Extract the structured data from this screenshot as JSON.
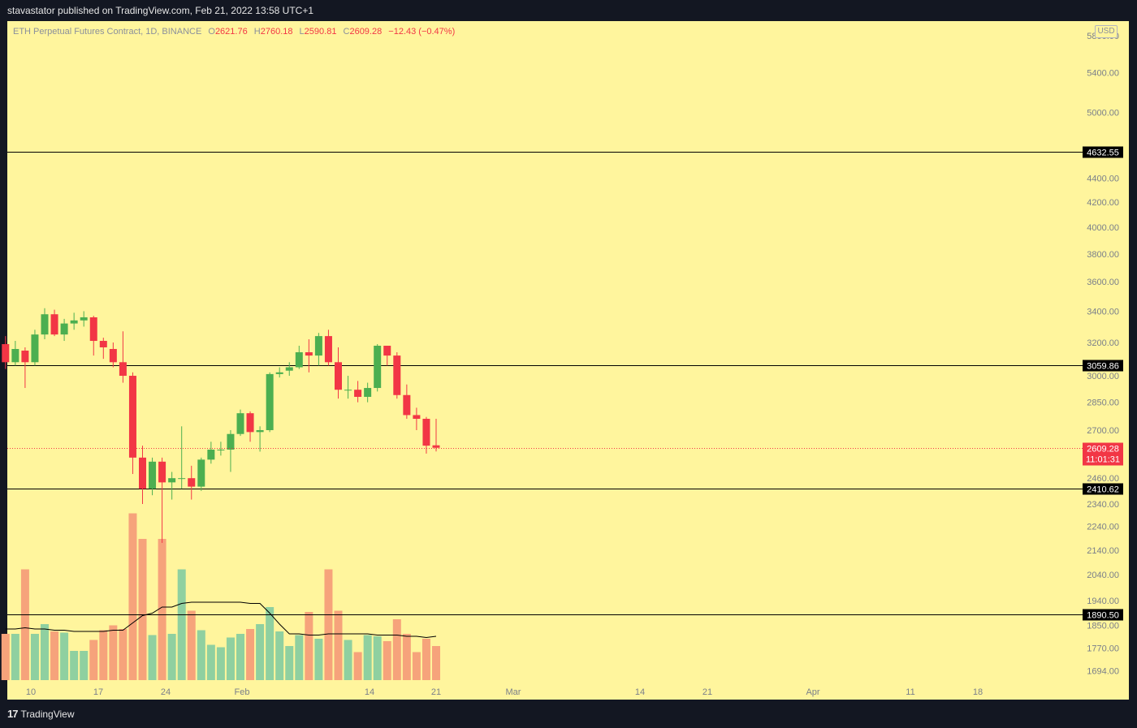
{
  "header": {
    "publisher_text": "stavastator published on TradingView.com, Feb 21, 2022 13:58 UTC+1"
  },
  "legend": {
    "symbol": "ETH Perpetual Futures Contract, 1D, BINANCE",
    "open_label": "O",
    "open": "2621.76",
    "high_label": "H",
    "high": "2760.18",
    "low_label": "L",
    "low": "2590.81",
    "close_label": "C",
    "close": "2609.28",
    "change": "−12.43 (−0.47%)"
  },
  "currency_badge": "USD",
  "footer": {
    "brand": "TradingView",
    "logo_glyph": "17"
  },
  "colors": {
    "background": "#fff59d",
    "up": "#4caf50",
    "down": "#f23645",
    "vol_up": "#8fd0a0",
    "vol_down": "#f6a37b",
    "level_line": "#000000",
    "last_price": "#f23645"
  },
  "chart_data": {
    "type": "candlestick",
    "title": "ETH Perpetual Futures Contract, 1D, BINANCE",
    "y_scale": "log",
    "price_axis_labels": [
      "5800.00",
      "5400.00",
      "5000.00",
      "4400.00",
      "4200.00",
      "4000.00",
      "3800.00",
      "3600.00",
      "3400.00",
      "3200.00",
      "3000.00",
      "2850.00",
      "2700.00",
      "2460.00",
      "2340.00",
      "2240.00",
      "2140.00",
      "2040.00",
      "1940.00",
      "1850.00",
      "1770.00",
      "1694.00"
    ],
    "price_axis_ticks": [
      5800,
      5400,
      5000,
      4400,
      4200,
      4000,
      3800,
      3600,
      3400,
      3200,
      3000,
      2850,
      2700,
      2460,
      2340,
      2240,
      2140,
      2040,
      1940,
      1850,
      1770,
      1694
    ],
    "time_axis_labels": [
      "10",
      "17",
      "24",
      "Feb",
      "14",
      "21",
      "Mar",
      "14",
      "21",
      "Apr",
      "11",
      "18"
    ],
    "horizontal_levels": [
      {
        "price": 4632.55,
        "label": "4632.55"
      },
      {
        "price": 3059.86,
        "label": "3059.86"
      },
      {
        "price": 2410.62,
        "label": "2410.62"
      },
      {
        "price": 1890.5,
        "label": "1890.50"
      }
    ],
    "last_price": {
      "price": 2609.28,
      "label": "2609.28",
      "countdown": "11:01:31"
    },
    "candles": [
      {
        "date": "2022-01-08",
        "o": 3190,
        "h": 3240,
        "l": 3040,
        "c": 3080
      },
      {
        "date": "2022-01-09",
        "o": 3080,
        "h": 3210,
        "l": 3060,
        "c": 3160
      },
      {
        "date": "2022-01-10",
        "o": 3150,
        "h": 3170,
        "l": 2930,
        "c": 3080
      },
      {
        "date": "2022-01-11",
        "o": 3080,
        "h": 3280,
        "l": 3060,
        "c": 3250
      },
      {
        "date": "2022-01-12",
        "o": 3250,
        "h": 3420,
        "l": 3220,
        "c": 3380
      },
      {
        "date": "2022-01-13",
        "o": 3380,
        "h": 3410,
        "l": 3240,
        "c": 3250
      },
      {
        "date": "2022-01-14",
        "o": 3250,
        "h": 3350,
        "l": 3210,
        "c": 3320
      },
      {
        "date": "2022-01-15",
        "o": 3320,
        "h": 3390,
        "l": 3280,
        "c": 3340
      },
      {
        "date": "2022-01-16",
        "o": 3340,
        "h": 3400,
        "l": 3300,
        "c": 3360
      },
      {
        "date": "2022-01-17",
        "o": 3360,
        "h": 3370,
        "l": 3120,
        "c": 3210
      },
      {
        "date": "2022-01-18",
        "o": 3210,
        "h": 3230,
        "l": 3100,
        "c": 3170
      },
      {
        "date": "2022-01-19",
        "o": 3160,
        "h": 3200,
        "l": 3050,
        "c": 3080
      },
      {
        "date": "2022-01-20",
        "o": 3080,
        "h": 3270,
        "l": 2960,
        "c": 3000
      },
      {
        "date": "2022-01-21",
        "o": 3000,
        "h": 3020,
        "l": 2480,
        "c": 2560
      },
      {
        "date": "2022-01-22",
        "o": 2560,
        "h": 2620,
        "l": 2340,
        "c": 2410
      },
      {
        "date": "2022-01-23",
        "o": 2410,
        "h": 2560,
        "l": 2380,
        "c": 2540
      },
      {
        "date": "2022-01-24",
        "o": 2540,
        "h": 2560,
        "l": 2170,
        "c": 2440
      },
      {
        "date": "2022-01-25",
        "o": 2440,
        "h": 2490,
        "l": 2360,
        "c": 2460
      },
      {
        "date": "2022-01-26",
        "o": 2460,
        "h": 2720,
        "l": 2410,
        "c": 2460
      },
      {
        "date": "2022-01-27",
        "o": 2460,
        "h": 2520,
        "l": 2360,
        "c": 2420
      },
      {
        "date": "2022-01-28",
        "o": 2420,
        "h": 2560,
        "l": 2400,
        "c": 2550
      },
      {
        "date": "2022-01-29",
        "o": 2550,
        "h": 2640,
        "l": 2530,
        "c": 2600
      },
      {
        "date": "2022-01-30",
        "o": 2600,
        "h": 2640,
        "l": 2570,
        "c": 2600
      },
      {
        "date": "2022-01-31",
        "o": 2600,
        "h": 2700,
        "l": 2490,
        "c": 2680
      },
      {
        "date": "2022-02-01",
        "o": 2680,
        "h": 2810,
        "l": 2670,
        "c": 2790
      },
      {
        "date": "2022-02-02",
        "o": 2790,
        "h": 2800,
        "l": 2640,
        "c": 2690
      },
      {
        "date": "2022-02-03",
        "o": 2690,
        "h": 2720,
        "l": 2590,
        "c": 2700
      },
      {
        "date": "2022-02-04",
        "o": 2700,
        "h": 3020,
        "l": 2690,
        "c": 3010
      },
      {
        "date": "2022-02-05",
        "o": 3010,
        "h": 3050,
        "l": 2990,
        "c": 3020
      },
      {
        "date": "2022-02-06",
        "o": 3030,
        "h": 3080,
        "l": 3000,
        "c": 3050
      },
      {
        "date": "2022-02-07",
        "o": 3050,
        "h": 3180,
        "l": 3040,
        "c": 3140
      },
      {
        "date": "2022-02-08",
        "o": 3140,
        "h": 3220,
        "l": 3020,
        "c": 3120
      },
      {
        "date": "2022-02-09",
        "o": 3120,
        "h": 3260,
        "l": 3060,
        "c": 3240
      },
      {
        "date": "2022-02-10",
        "o": 3240,
        "h": 3280,
        "l": 3060,
        "c": 3080
      },
      {
        "date": "2022-02-11",
        "o": 3080,
        "h": 3170,
        "l": 2870,
        "c": 2920
      },
      {
        "date": "2022-02-12",
        "o": 2920,
        "h": 3000,
        "l": 2870,
        "c": 2920
      },
      {
        "date": "2022-02-13",
        "o": 2920,
        "h": 2970,
        "l": 2850,
        "c": 2880
      },
      {
        "date": "2022-02-14",
        "o": 2880,
        "h": 2960,
        "l": 2850,
        "c": 2930
      },
      {
        "date": "2022-02-15",
        "o": 2930,
        "h": 3190,
        "l": 2910,
        "c": 3180
      },
      {
        "date": "2022-02-16",
        "o": 3180,
        "h": 3180,
        "l": 3060,
        "c": 3120
      },
      {
        "date": "2022-02-17",
        "o": 3120,
        "h": 3140,
        "l": 2870,
        "c": 2890
      },
      {
        "date": "2022-02-18",
        "o": 2890,
        "h": 2950,
        "l": 2760,
        "c": 2780
      },
      {
        "date": "2022-02-19",
        "o": 2780,
        "h": 2820,
        "l": 2700,
        "c": 2760
      },
      {
        "date": "2022-02-20",
        "o": 2760,
        "h": 2770,
        "l": 2580,
        "c": 2620
      },
      {
        "date": "2022-02-21",
        "o": 2621.76,
        "h": 2760.18,
        "l": 2590.81,
        "c": 2609.28
      }
    ],
    "volume": {
      "series_name": "Volume",
      "ma_series_name": "Volume MA",
      "values": [
        0.38,
        0.38,
        0.91,
        0.38,
        0.46,
        0.4,
        0.39,
        0.24,
        0.24,
        0.33,
        0.41,
        0.45,
        0.42,
        1.37,
        1.16,
        0.37,
        1.16,
        0.38,
        0.91,
        0.57,
        0.41,
        0.29,
        0.27,
        0.35,
        0.38,
        0.42,
        0.46,
        0.6,
        0.4,
        0.28,
        0.37,
        0.56,
        0.34,
        0.91,
        0.57,
        0.33,
        0.23,
        0.37,
        0.36,
        0.32,
        0.5,
        0.38,
        0.23,
        0.34,
        0.28
      ],
      "ma": [
        0.42,
        0.42,
        0.43,
        0.42,
        0.42,
        0.41,
        0.41,
        0.4,
        0.4,
        0.4,
        0.4,
        0.41,
        0.41,
        0.47,
        0.53,
        0.55,
        0.6,
        0.6,
        0.63,
        0.64,
        0.64,
        0.64,
        0.64,
        0.64,
        0.64,
        0.63,
        0.63,
        0.55,
        0.46,
        0.38,
        0.38,
        0.37,
        0.37,
        0.38,
        0.38,
        0.38,
        0.38,
        0.38,
        0.37,
        0.37,
        0.37,
        0.36,
        0.36,
        0.35,
        0.36
      ]
    }
  }
}
